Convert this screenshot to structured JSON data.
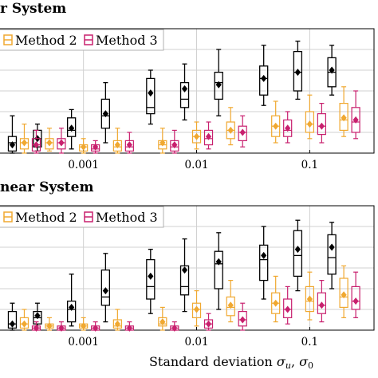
{
  "chart_data": [
    {
      "type": "box",
      "title": "r System",
      "categories": [
        "0.001",
        "0.01",
        "0.1"
      ],
      "x_positions": [
        0.0003,
        0.0005,
        0.001,
        0.002,
        0.005,
        0.01,
        0.02,
        0.05,
        0.1,
        0.2
      ],
      "ylim": [
        0,
        6
      ],
      "grid": true,
      "legend": {
        "placement": "top-left",
        "entries": [
          "Method 2",
          "Method 3"
        ]
      },
      "series": [
        {
          "name": "",
          "color": "#000000",
          "boxes": [
            {
              "x": 0.0003,
              "whislo": 0.0,
              "q1": 0.1,
              "med": 0.5,
              "q3": 0.8,
              "whishi": 1.8,
              "mean": 0.4
            },
            {
              "x": 0.0005,
              "whislo": 0.1,
              "q1": 0.3,
              "med": 0.7,
              "q3": 1.1,
              "whishi": 1.4,
              "mean": 0.7
            },
            {
              "x": 0.001,
              "whislo": 0.2,
              "q1": 0.8,
              "med": 1.1,
              "q3": 1.7,
              "whishi": 2.1,
              "mean": 1.2
            },
            {
              "x": 0.002,
              "whislo": 0.5,
              "q1": 1.2,
              "med": 1.8,
              "q3": 2.6,
              "whishi": 3.4,
              "mean": 1.9
            },
            {
              "x": 0.005,
              "whislo": 1.4,
              "q1": 1.9,
              "med": 2.2,
              "q3": 3.6,
              "whishi": 4.0,
              "mean": 2.9
            },
            {
              "x": 0.01,
              "whislo": 1.6,
              "q1": 2.2,
              "med": 2.6,
              "q3": 3.4,
              "whishi": 4.3,
              "mean": 3.1
            },
            {
              "x": 0.02,
              "whislo": 1.8,
              "q1": 2.6,
              "med": 3.4,
              "q3": 3.9,
              "whishi": 5.0,
              "mean": 3.3
            },
            {
              "x": 0.05,
              "whislo": 2.3,
              "q1": 2.8,
              "med": 3.6,
              "q3": 4.2,
              "whishi": 5.2,
              "mean": 3.6
            },
            {
              "x": 0.1,
              "whislo": 2.6,
              "q1": 3.0,
              "med": 3.9,
              "q3": 4.9,
              "whishi": 5.4,
              "mean": 3.9
            },
            {
              "x": 0.2,
              "whislo": 2.8,
              "q1": 3.2,
              "med": 3.9,
              "q3": 4.6,
              "whishi": 5.2,
              "mean": 4.0
            }
          ]
        },
        {
          "name": "Method 2",
          "color": "#f0a830",
          "boxes": [
            {
              "x": 0.0003,
              "whislo": 0.0,
              "q1": 0.2,
              "med": 0.5,
              "q3": 0.7,
              "whishi": 1.4,
              "mean": 0.5
            },
            {
              "x": 0.0005,
              "whislo": 0.1,
              "q1": 0.2,
              "med": 0.5,
              "q3": 0.7,
              "whishi": 1.2,
              "mean": 0.5
            },
            {
              "x": 0.001,
              "whislo": 0.0,
              "q1": 0.1,
              "med": 0.3,
              "q3": 0.4,
              "whishi": 0.7,
              "mean": 0.3
            },
            {
              "x": 0.002,
              "whislo": 0.0,
              "q1": 0.1,
              "med": 0.3,
              "q3": 0.6,
              "whishi": 1.2,
              "mean": 0.4
            },
            {
              "x": 0.005,
              "whislo": 0.0,
              "q1": 0.2,
              "med": 0.4,
              "q3": 0.6,
              "whishi": 1.2,
              "mean": 0.5
            },
            {
              "x": 0.01,
              "whislo": 0.2,
              "q1": 0.5,
              "med": 0.8,
              "q3": 1.1,
              "whishi": 1.5,
              "mean": 0.8
            },
            {
              "x": 0.02,
              "whislo": 0.4,
              "q1": 0.7,
              "med": 1.1,
              "q3": 1.5,
              "whishi": 2.2,
              "mean": 1.1
            },
            {
              "x": 0.05,
              "whislo": 0.5,
              "q1": 0.8,
              "med": 1.3,
              "q3": 1.8,
              "whishi": 2.5,
              "mean": 1.3
            },
            {
              "x": 0.1,
              "whislo": 0.7,
              "q1": 1.0,
              "med": 1.4,
              "q3": 2.0,
              "whishi": 2.8,
              "mean": 1.4
            },
            {
              "x": 0.2,
              "whislo": 0.8,
              "q1": 1.1,
              "med": 1.6,
              "q3": 2.4,
              "whishi": 3.2,
              "mean": 1.7
            }
          ]
        },
        {
          "name": "Method 3",
          "color": "#c8206e",
          "boxes": [
            {
              "x": 0.0003,
              "whislo": 0.0,
              "q1": 0.1,
              "med": 0.4,
              "q3": 0.7,
              "whishi": 1.1,
              "mean": 0.4
            },
            {
              "x": 0.0005,
              "whislo": 0.0,
              "q1": 0.2,
              "med": 0.5,
              "q3": 0.7,
              "whishi": 1.2,
              "mean": 0.5
            },
            {
              "x": 0.001,
              "whislo": 0.0,
              "q1": 0.1,
              "med": 0.2,
              "q3": 0.4,
              "whishi": 0.6,
              "mean": 0.3
            },
            {
              "x": 0.002,
              "whislo": 0.0,
              "q1": 0.1,
              "med": 0.3,
              "q3": 0.6,
              "whishi": 1.0,
              "mean": 0.4
            },
            {
              "x": 0.005,
              "whislo": 0.0,
              "q1": 0.1,
              "med": 0.3,
              "q3": 0.6,
              "whishi": 1.1,
              "mean": 0.4
            },
            {
              "x": 0.01,
              "whislo": 0.2,
              "q1": 0.4,
              "med": 0.7,
              "q3": 1.1,
              "whishi": 1.5,
              "mean": 0.8
            },
            {
              "x": 0.02,
              "whislo": 0.3,
              "q1": 0.6,
              "med": 1.0,
              "q3": 1.3,
              "whishi": 1.8,
              "mean": 1.0
            },
            {
              "x": 0.05,
              "whislo": 0.5,
              "q1": 0.8,
              "med": 1.1,
              "q3": 1.6,
              "whishi": 2.0,
              "mean": 1.2
            },
            {
              "x": 0.1,
              "whislo": 0.5,
              "q1": 0.9,
              "med": 1.3,
              "q3": 1.9,
              "whishi": 2.4,
              "mean": 1.3
            },
            {
              "x": 0.2,
              "whislo": 0.7,
              "q1": 1.0,
              "med": 1.5,
              "q3": 2.2,
              "whishi": 3.0,
              "mean": 1.6
            }
          ]
        }
      ]
    },
    {
      "type": "box",
      "title": "near System",
      "categories": [
        "0.001",
        "0.01",
        "0.1"
      ],
      "x_positions": [
        0.0003,
        0.0005,
        0.001,
        0.002,
        0.005,
        0.01,
        0.02,
        0.05,
        0.1,
        0.2
      ],
      "ylim": [
        0,
        6
      ],
      "grid": true,
      "xlabel": "Standard deviation σu, σ0",
      "legend": {
        "placement": "top-left",
        "entries": [
          "Method 2",
          "Method 3"
        ]
      },
      "series": [
        {
          "name": "",
          "color": "#000000",
          "boxes": [
            {
              "x": 0.0003,
              "whislo": 0.0,
              "q1": 0.1,
              "med": 0.3,
              "q3": 0.9,
              "whishi": 1.3,
              "mean": 0.3
            },
            {
              "x": 0.0005,
              "whislo": 0.1,
              "q1": 0.3,
              "med": 0.6,
              "q3": 0.9,
              "whishi": 1.3,
              "mean": 0.7
            },
            {
              "x": 0.001,
              "whislo": 0.2,
              "q1": 0.4,
              "med": 1.0,
              "q3": 1.4,
              "whishi": 2.7,
              "mean": 1.1
            },
            {
              "x": 0.002,
              "whislo": 0.4,
              "q1": 1.2,
              "med": 1.6,
              "q3": 2.9,
              "whishi": 3.7,
              "mean": 1.9
            },
            {
              "x": 0.005,
              "whislo": 0.8,
              "q1": 1.5,
              "med": 2.1,
              "q3": 3.4,
              "whishi": 3.9,
              "mean": 2.6
            },
            {
              "x": 0.01,
              "whislo": 0.9,
              "q1": 1.7,
              "med": 2.1,
              "q3": 3.1,
              "whishi": 4.4,
              "mean": 2.9
            },
            {
              "x": 0.02,
              "whislo": 1.0,
              "q1": 2.0,
              "med": 3.2,
              "q3": 3.8,
              "whishi": 4.7,
              "mean": 3.3
            },
            {
              "x": 0.05,
              "whislo": 1.5,
              "q1": 2.4,
              "med": 3.4,
              "q3": 4.1,
              "whishi": 5.0,
              "mean": 3.6
            },
            {
              "x": 0.1,
              "whislo": 1.9,
              "q1": 2.6,
              "med": 3.6,
              "q3": 4.8,
              "whishi": 5.3,
              "mean": 3.9
            },
            {
              "x": 0.2,
              "whislo": 2.0,
              "q1": 2.7,
              "med": 3.5,
              "q3": 4.6,
              "whishi": 5.2,
              "mean": 4.0
            }
          ]
        },
        {
          "name": "Method 2",
          "color": "#f0a830",
          "boxes": [
            {
              "x": 0.0003,
              "whislo": 0.0,
              "q1": 0.1,
              "med": 0.3,
              "q3": 0.6,
              "whishi": 1.0,
              "mean": 0.3
            },
            {
              "x": 0.0005,
              "whislo": 0.0,
              "q1": 0.1,
              "med": 0.2,
              "q3": 0.3,
              "whishi": 0.6,
              "mean": 0.2
            },
            {
              "x": 0.001,
              "whislo": 0.0,
              "q1": 0.1,
              "med": 0.2,
              "q3": 0.3,
              "whishi": 0.6,
              "mean": 0.2
            },
            {
              "x": 0.002,
              "whislo": 0.0,
              "q1": 0.1,
              "med": 0.2,
              "q3": 0.5,
              "whishi": 1.0,
              "mean": 0.3
            },
            {
              "x": 0.005,
              "whislo": 0.0,
              "q1": 0.2,
              "med": 0.3,
              "q3": 0.6,
              "whishi": 1.1,
              "mean": 0.4
            },
            {
              "x": 0.01,
              "whislo": 0.2,
              "q1": 0.6,
              "med": 1.0,
              "q3": 1.3,
              "whishi": 1.9,
              "mean": 1.0
            },
            {
              "x": 0.02,
              "whislo": 0.4,
              "q1": 0.7,
              "med": 1.1,
              "q3": 1.6,
              "whishi": 2.4,
              "mean": 1.2
            },
            {
              "x": 0.05,
              "whislo": 0.4,
              "q1": 0.8,
              "med": 1.3,
              "q3": 1.8,
              "whishi": 2.6,
              "mean": 1.3
            },
            {
              "x": 0.1,
              "whislo": 0.5,
              "q1": 0.9,
              "med": 1.4,
              "q3": 2.1,
              "whishi": 2.8,
              "mean": 1.5
            },
            {
              "x": 0.2,
              "whislo": 0.6,
              "q1": 1.1,
              "med": 1.6,
              "q3": 2.5,
              "whishi": 3.1,
              "mean": 1.7
            }
          ]
        },
        {
          "name": "Method 3",
          "color": "#c8206e",
          "boxes": [
            {
              "x": 0.0003,
              "whislo": 0.0,
              "q1": 0.0,
              "med": 0.1,
              "q3": 0.2,
              "whishi": 0.4,
              "mean": 0.1
            },
            {
              "x": 0.0005,
              "whislo": 0.0,
              "q1": 0.0,
              "med": 0.1,
              "q3": 0.2,
              "whishi": 0.4,
              "mean": 0.1
            },
            {
              "x": 0.001,
              "whislo": 0.0,
              "q1": 0.0,
              "med": 0.1,
              "q3": 0.2,
              "whishi": 0.4,
              "mean": 0.1
            },
            {
              "x": 0.002,
              "whislo": 0.0,
              "q1": 0.0,
              "med": 0.1,
              "q3": 0.2,
              "whishi": 0.4,
              "mean": 0.1
            },
            {
              "x": 0.005,
              "whislo": 0.0,
              "q1": 0.0,
              "med": 0.1,
              "q3": 0.2,
              "whishi": 0.4,
              "mean": 0.1
            },
            {
              "x": 0.01,
              "whislo": 0.0,
              "q1": 0.1,
              "med": 0.3,
              "q3": 0.5,
              "whishi": 0.8,
              "mean": 0.3
            },
            {
              "x": 0.02,
              "whislo": 0.0,
              "q1": 0.2,
              "med": 0.5,
              "q3": 0.9,
              "whishi": 1.3,
              "mean": 0.5
            },
            {
              "x": 0.05,
              "whislo": 0.3,
              "q1": 0.6,
              "med": 1.0,
              "q3": 1.5,
              "whishi": 2.1,
              "mean": 1.0
            },
            {
              "x": 0.1,
              "whislo": 0.4,
              "q1": 0.8,
              "med": 1.2,
              "q3": 1.8,
              "whishi": 2.4,
              "mean": 1.2
            },
            {
              "x": 0.2,
              "whislo": 0.6,
              "q1": 1.0,
              "med": 1.4,
              "q3": 2.1,
              "whishi": 2.8,
              "mean": 1.4
            }
          ]
        }
      ]
    }
  ]
}
